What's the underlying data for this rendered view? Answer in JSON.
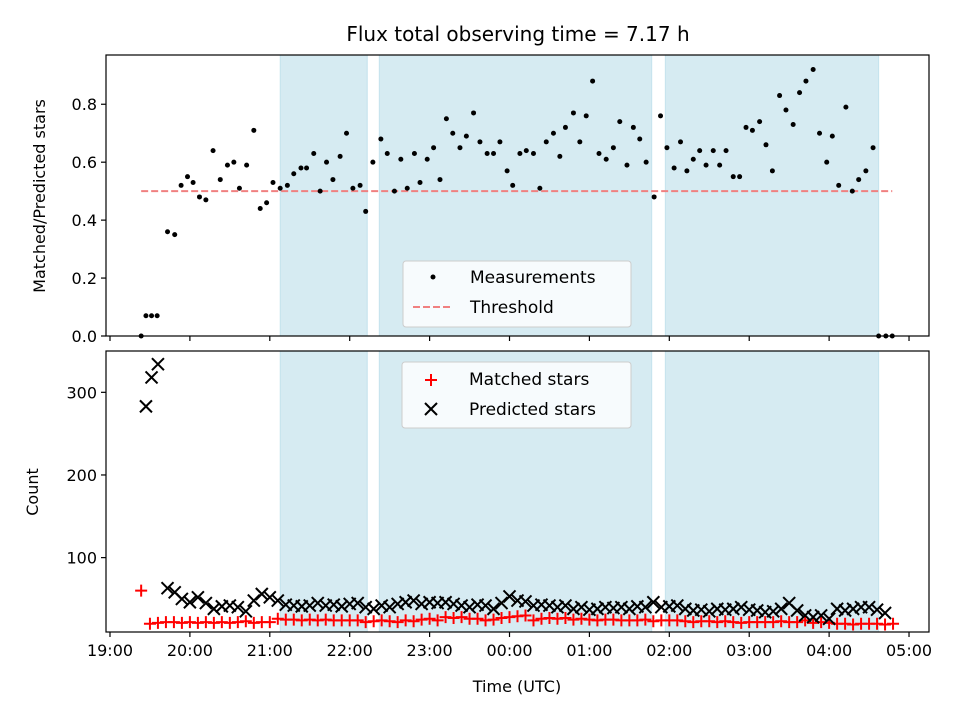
{
  "chart_data": {
    "title": "Flux total observing time = 7.17 h",
    "type": "scatter",
    "xlabel": "Time (UTC)",
    "x_axis": {
      "unit": "hours since 19:00 UTC",
      "range": [
        -0.05,
        10.25
      ],
      "ticks": [
        {
          "value": 0,
          "label": "19:00"
        },
        {
          "value": 1,
          "label": "20:00"
        },
        {
          "value": 2,
          "label": "21:00"
        },
        {
          "value": 3,
          "label": "22:00"
        },
        {
          "value": 4,
          "label": "23:00"
        },
        {
          "value": 5,
          "label": "00:00"
        },
        {
          "value": 6,
          "label": "01:00"
        },
        {
          "value": 7,
          "label": "02:00"
        },
        {
          "value": 8,
          "label": "03:00"
        },
        {
          "value": 9,
          "label": "04:00"
        },
        {
          "value": 10,
          "label": "05:00"
        }
      ]
    },
    "shaded_intervals": [
      [
        2.13,
        3.22
      ],
      [
        3.37,
        6.78
      ],
      [
        6.95,
        9.62
      ]
    ],
    "shade_color": "#add8e6",
    "top_panel": {
      "ylabel": "Matched/Predicted stars",
      "ylim": [
        0,
        0.97
      ],
      "yticks": [
        {
          "value": 0.0,
          "label": "0.0"
        },
        {
          "value": 0.2,
          "label": "0.2"
        },
        {
          "value": 0.4,
          "label": "0.4"
        },
        {
          "value": 0.6,
          "label": "0.6"
        },
        {
          "value": 0.8,
          "label": "0.8"
        }
      ],
      "legend": {
        "placement": "lower-center",
        "entries": [
          "Measurements",
          "Threshold"
        ]
      },
      "series": [
        {
          "name": "Measurements",
          "marker": "dot",
          "color": "#000000",
          "x": [
            0.39,
            0.45,
            0.52,
            0.59,
            0.72,
            0.81,
            0.89,
            0.97,
            1.04,
            1.12,
            1.2,
            1.29,
            1.38,
            1.47,
            1.55,
            1.62,
            1.71,
            1.8,
            1.88,
            1.96,
            2.04,
            2.13,
            2.22,
            2.3,
            2.39,
            2.46,
            2.55,
            2.63,
            2.71,
            2.79,
            2.88,
            2.96,
            3.04,
            3.13,
            3.2,
            3.29,
            3.39,
            3.47,
            3.56,
            3.64,
            3.72,
            3.81,
            3.88,
            3.97,
            4.05,
            4.13,
            4.21,
            4.29,
            4.38,
            4.46,
            4.55,
            4.63,
            4.72,
            4.8,
            4.88,
            4.97,
            5.04,
            5.13,
            5.21,
            5.3,
            5.38,
            5.46,
            5.55,
            5.63,
            5.7,
            5.8,
            5.88,
            5.96,
            6.04,
            6.12,
            6.21,
            6.3,
            6.38,
            6.47,
            6.55,
            6.63,
            6.71,
            6.81,
            6.89,
            6.97,
            7.06,
            7.14,
            7.22,
            7.3,
            7.38,
            7.46,
            7.55,
            7.63,
            7.71,
            7.8,
            7.88,
            7.96,
            8.04,
            8.13,
            8.21,
            8.29,
            8.38,
            8.46,
            8.55,
            8.63,
            8.71,
            8.8,
            8.88,
            8.97,
            9.04,
            9.12,
            9.21,
            9.29,
            9.37,
            9.46,
            9.55,
            9.62,
            9.71,
            9.79
          ],
          "y": [
            0.0,
            0.07,
            0.07,
            0.07,
            0.36,
            0.35,
            0.52,
            0.55,
            0.53,
            0.48,
            0.47,
            0.64,
            0.54,
            0.59,
            0.6,
            0.51,
            0.59,
            0.71,
            0.44,
            0.46,
            0.53,
            0.51,
            0.52,
            0.56,
            0.58,
            0.58,
            0.63,
            0.5,
            0.6,
            0.54,
            0.62,
            0.7,
            0.51,
            0.52,
            0.43,
            0.6,
            0.68,
            0.63,
            0.5,
            0.61,
            0.51,
            0.63,
            0.53,
            0.61,
            0.65,
            0.54,
            0.75,
            0.7,
            0.65,
            0.69,
            0.77,
            0.67,
            0.63,
            0.63,
            0.67,
            0.57,
            0.52,
            0.63,
            0.64,
            0.63,
            0.51,
            0.67,
            0.7,
            0.62,
            0.72,
            0.77,
            0.67,
            0.76,
            0.88,
            0.63,
            0.61,
            0.65,
            0.74,
            0.59,
            0.72,
            0.68,
            0.6,
            0.48,
            0.76,
            0.65,
            0.58,
            0.67,
            0.57,
            0.61,
            0.64,
            0.59,
            0.64,
            0.59,
            0.64,
            0.55,
            0.55,
            0.72,
            0.71,
            0.74,
            0.66,
            0.57,
            0.83,
            0.78,
            0.73,
            0.84,
            0.88,
            0.92,
            0.7,
            0.6,
            0.69,
            0.52,
            0.79,
            0.5,
            0.54,
            0.57,
            0.65,
            0.0,
            0.0,
            0.0
          ]
        },
        {
          "name": "Threshold",
          "marker": "dashed-line",
          "color": "#f08080",
          "x": [
            0.39,
            9.79
          ],
          "y": [
            0.5,
            0.5
          ]
        }
      ]
    },
    "bottom_panel": {
      "ylabel": "Count",
      "ylim": [
        10,
        350
      ],
      "yticks": [
        {
          "value": 100,
          "label": "100"
        },
        {
          "value": 200,
          "label": "200"
        },
        {
          "value": 300,
          "label": "300"
        }
      ],
      "legend": {
        "placement": "upper-center",
        "entries": [
          "Matched stars",
          "Predicted stars"
        ]
      },
      "series": [
        {
          "name": "Matched stars",
          "marker": "plus",
          "color": "#ff0000",
          "x": [
            0.39,
            0.5,
            0.6,
            0.7,
            0.8,
            0.9,
            1.0,
            1.1,
            1.2,
            1.3,
            1.4,
            1.5,
            1.6,
            1.7,
            1.8,
            1.9,
            2.0,
            2.1,
            2.2,
            2.3,
            2.4,
            2.5,
            2.6,
            2.7,
            2.8,
            2.9,
            3.0,
            3.1,
            3.2,
            3.3,
            3.4,
            3.5,
            3.6,
            3.7,
            3.8,
            3.9,
            4.0,
            4.1,
            4.2,
            4.3,
            4.4,
            4.5,
            4.6,
            4.7,
            4.8,
            4.9,
            5.0,
            5.1,
            5.2,
            5.3,
            5.4,
            5.5,
            5.6,
            5.7,
            5.8,
            5.9,
            6.0,
            6.1,
            6.2,
            6.3,
            6.4,
            6.5,
            6.6,
            6.7,
            6.8,
            6.9,
            7.0,
            7.1,
            7.2,
            7.3,
            7.4,
            7.5,
            7.6,
            7.7,
            7.8,
            7.9,
            8.0,
            8.1,
            8.2,
            8.3,
            8.4,
            8.5,
            8.6,
            8.7,
            8.8,
            8.9,
            9.0,
            9.1,
            9.2,
            9.3,
            9.4,
            9.5,
            9.6,
            9.7,
            9.8
          ],
          "y": [
            60,
            20,
            21,
            22,
            22,
            21,
            22,
            21,
            22,
            21,
            22,
            21,
            22,
            23,
            21,
            22,
            22,
            26,
            25,
            25,
            24,
            25,
            24,
            25,
            24,
            24,
            24,
            24,
            22,
            23,
            24,
            23,
            22,
            24,
            23,
            25,
            26,
            24,
            28,
            27,
            28,
            26,
            26,
            24,
            25,
            27,
            28,
            29,
            30,
            24,
            26,
            27,
            26,
            27,
            25,
            26,
            25,
            24,
            25,
            25,
            24,
            24,
            24,
            25,
            23,
            24,
            24,
            24,
            23,
            22,
            23,
            23,
            22,
            23,
            22,
            21,
            22,
            22,
            22,
            22,
            23,
            22,
            22,
            24,
            21,
            22,
            21,
            20,
            20,
            19,
            20,
            20,
            20,
            19,
            20
          ]
        },
        {
          "name": "Predicted stars",
          "marker": "x",
          "color": "#000000",
          "x": [
            0.45,
            0.52,
            0.6,
            0.72,
            0.81,
            0.9,
            1.0,
            1.1,
            1.2,
            1.3,
            1.4,
            1.5,
            1.6,
            1.7,
            1.8,
            1.9,
            2.0,
            2.1,
            2.2,
            2.3,
            2.4,
            2.5,
            2.6,
            2.7,
            2.8,
            2.9,
            3.0,
            3.1,
            3.2,
            3.3,
            3.4,
            3.5,
            3.6,
            3.7,
            3.8,
            3.9,
            4.0,
            4.1,
            4.2,
            4.3,
            4.4,
            4.5,
            4.6,
            4.7,
            4.8,
            4.9,
            5.0,
            5.1,
            5.2,
            5.3,
            5.4,
            5.5,
            5.6,
            5.7,
            5.8,
            5.9,
            6.0,
            6.1,
            6.2,
            6.3,
            6.4,
            6.5,
            6.6,
            6.7,
            6.8,
            6.9,
            7.0,
            7.1,
            7.2,
            7.3,
            7.4,
            7.5,
            7.6,
            7.7,
            7.8,
            7.9,
            8.0,
            8.1,
            8.2,
            8.3,
            8.4,
            8.5,
            8.6,
            8.7,
            8.8,
            8.9,
            9.0,
            9.1,
            9.2,
            9.3,
            9.4,
            9.5,
            9.6,
            9.7
          ],
          "y": [
            283,
            318,
            334,
            63,
            58,
            50,
            46,
            52,
            45,
            38,
            41,
            42,
            40,
            35,
            48,
            56,
            52,
            48,
            43,
            42,
            41,
            42,
            45,
            42,
            43,
            41,
            44,
            45,
            40,
            38,
            42,
            40,
            44,
            46,
            48,
            44,
            46,
            45,
            46,
            44,
            42,
            40,
            43,
            42,
            38,
            45,
            53,
            48,
            47,
            42,
            43,
            42,
            40,
            42,
            38,
            40,
            37,
            38,
            40,
            39,
            40,
            38,
            41,
            40,
            46,
            40,
            41,
            42,
            38,
            36,
            37,
            35,
            38,
            37,
            38,
            40,
            37,
            36,
            34,
            35,
            38,
            45,
            36,
            30,
            28,
            30,
            26,
            38,
            36,
            38,
            40,
            40,
            37,
            33
          ]
        }
      ]
    }
  }
}
